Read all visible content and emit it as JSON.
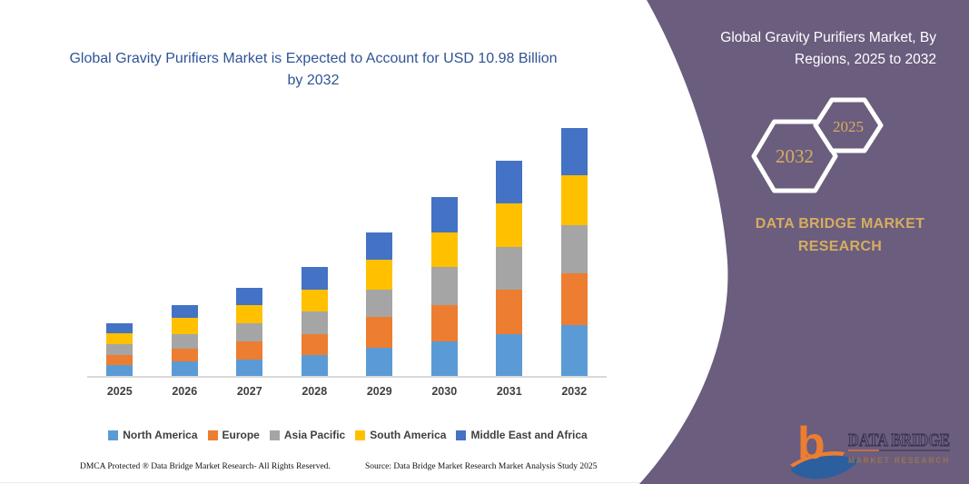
{
  "chart_data": {
    "type": "bar",
    "stacked": true,
    "title": "Global Gravity Purifiers Market is Expected to Account for USD 10.98 Billion by 2032",
    "unit": "USD Billion",
    "categories": [
      "2025",
      "2026",
      "2027",
      "2028",
      "2029",
      "2030",
      "2031",
      "2032"
    ],
    "series": [
      {
        "name": "North America",
        "color": "#5B9BD5",
        "values": [
          0.47,
          0.63,
          0.72,
          0.92,
          1.26,
          1.53,
          1.86,
          2.26
        ]
      },
      {
        "name": "Europe",
        "color": "#ED7D31",
        "values": [
          0.47,
          0.56,
          0.8,
          0.94,
          1.35,
          1.61,
          1.96,
          2.28
        ]
      },
      {
        "name": "Asia Pacific",
        "color": "#A5A5A5",
        "values": [
          0.47,
          0.67,
          0.8,
          1.01,
          1.21,
          1.69,
          1.9,
          2.14
        ]
      },
      {
        "name": "South America",
        "color": "#FFC000",
        "values": [
          0.47,
          0.71,
          0.8,
          0.95,
          1.33,
          1.53,
          1.92,
          2.21
        ]
      },
      {
        "name": "Middle East and Africa",
        "color": "#4472C4",
        "values": [
          0.47,
          0.56,
          0.8,
          1.01,
          1.21,
          1.58,
          1.89,
          2.09
        ]
      }
    ],
    "totals": [
      2.35,
      3.13,
      3.92,
      4.83,
      6.36,
      7.94,
      9.53,
      10.98
    ],
    "ylim": [
      0,
      11.5
    ],
    "gridlines": false,
    "y_axis_visible": false,
    "legend_position": "bottom"
  },
  "header": {
    "title_line1": "Global Gravity Purifiers Market is Expected to Account for USD",
    "title_line2": "10.98 Billion by 2032"
  },
  "footer": {
    "dmca": "DMCA Protected ® Data Bridge Market Research-  All Rights Reserved.",
    "source": "Source: Data Bridge Market Research  Market Analysis Study 2025"
  },
  "panel": {
    "title_line1": "Global Gravity Purifiers Market, By",
    "title_line2": "Regions, 2025 to 2032",
    "hexagons": [
      {
        "label": "2032"
      },
      {
        "label": "2025"
      }
    ],
    "brand_line1": "DATA BRIDGE MARKET",
    "brand_line2": "RESEARCH",
    "logo": {
      "monogram": "b",
      "text_top": "DATA BRIDGE",
      "text_bottom": "MARKET RESEARCH"
    }
  },
  "colors": {
    "panel_purple": "#6B5D7E",
    "brand_gold": "#D5AD60",
    "chart_title_blue": "#2F5496",
    "axis_label": "#404040",
    "axis_line": "#D9D9D9",
    "legend_text": "#3F3F3F",
    "logo_orange": "#ED7D31",
    "logo_blue": "#2C5F9D"
  }
}
